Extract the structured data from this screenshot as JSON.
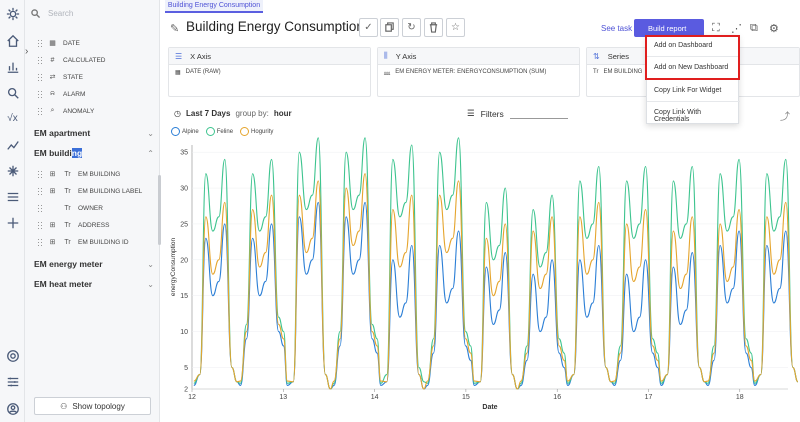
{
  "tab": {
    "label": "Building Energy Consumption"
  },
  "title": "Building Energy Consumption",
  "header": {
    "see_task": "See task",
    "build_report": "Build report"
  },
  "search": {
    "placeholder": "Search"
  },
  "sidebar": {
    "fields": [
      {
        "label": "DATE",
        "icon": "calendar-icon"
      },
      {
        "label": "CALCULATED",
        "icon": "hash-icon"
      },
      {
        "label": "STATE",
        "icon": "state-icon"
      },
      {
        "label": "ALARM",
        "icon": "bell-icon"
      },
      {
        "label": "ANOMALY",
        "icon": "anomaly-icon"
      }
    ],
    "groups": [
      {
        "label": "EM apartment",
        "chevron": "⌄"
      },
      {
        "label_a": "EM buildi",
        "label_hl": "ng",
        "chevron": "⌃"
      },
      {
        "label": "EM energy meter",
        "chevron": "⌄"
      },
      {
        "label": "EM heat meter",
        "chevron": "⌄"
      }
    ],
    "building_fields": [
      {
        "label": "EM BUILDING",
        "icon": "Tr"
      },
      {
        "label": "EM BUILDING LABEL",
        "icon": "Tr"
      },
      {
        "label": "OWNER",
        "icon": "Tr"
      },
      {
        "label": "ADDRESS",
        "icon": "Tr"
      },
      {
        "label": "EM BUILDING ID",
        "icon": "Tr"
      }
    ],
    "show_topology": "Show topology"
  },
  "axes": {
    "x": {
      "label": "X Axis",
      "value": "DATE (RAW)"
    },
    "y": {
      "label": "Y Axis",
      "value": "EM ENERGY METER: ENERGYCONSUMPTION (SUM)"
    },
    "series": {
      "label": "Series",
      "value": "EM BUILDING"
    }
  },
  "range": {
    "label": "Last 7 Days",
    "group_prefix": "group by:",
    "group_value": "hour"
  },
  "filters": {
    "label": "Filters"
  },
  "menu": {
    "items": [
      "Add on Dashboard",
      "Add on New Dashboard",
      "Copy Link For Widget",
      "Copy Link With Credentials"
    ]
  },
  "chart_data": {
    "type": "line",
    "xlabel": "Date",
    "ylabel": "energyConsumption",
    "ylim": [
      2,
      36
    ],
    "yticks": [
      2,
      5,
      10,
      15,
      20,
      25,
      30,
      35
    ],
    "xticks": [
      "12",
      "13",
      "14",
      "15",
      "16",
      "17",
      "18"
    ],
    "series": [
      {
        "name": "Alpine",
        "color": "#2c7fd6",
        "peaks": [
          23,
          23,
          26,
          26,
          20,
          22,
          19,
          18,
          20,
          18,
          19,
          22,
          22
        ],
        "troughs": [
          3,
          8,
          2,
          7,
          2,
          6,
          2,
          5,
          3,
          5,
          3,
          5,
          3
        ]
      },
      {
        "name": "Feline",
        "color": "#3ec48f",
        "peaks": [
          32,
          32,
          35,
          35,
          34,
          35,
          28,
          27,
          31,
          31,
          31,
          32,
          32
        ],
        "troughs": [
          3,
          10,
          2,
          9,
          3,
          8,
          2,
          7,
          3,
          7,
          3,
          7,
          3
        ]
      },
      {
        "name": "Hogurity",
        "color": "#e5a52e",
        "peaks": [
          26,
          27,
          29,
          30,
          27,
          29,
          23,
          24,
          26,
          25,
          24,
          25,
          26
        ],
        "troughs": [
          3,
          9,
          2,
          8,
          2,
          7,
          2,
          6,
          3,
          6,
          3,
          6,
          3
        ]
      }
    ]
  }
}
